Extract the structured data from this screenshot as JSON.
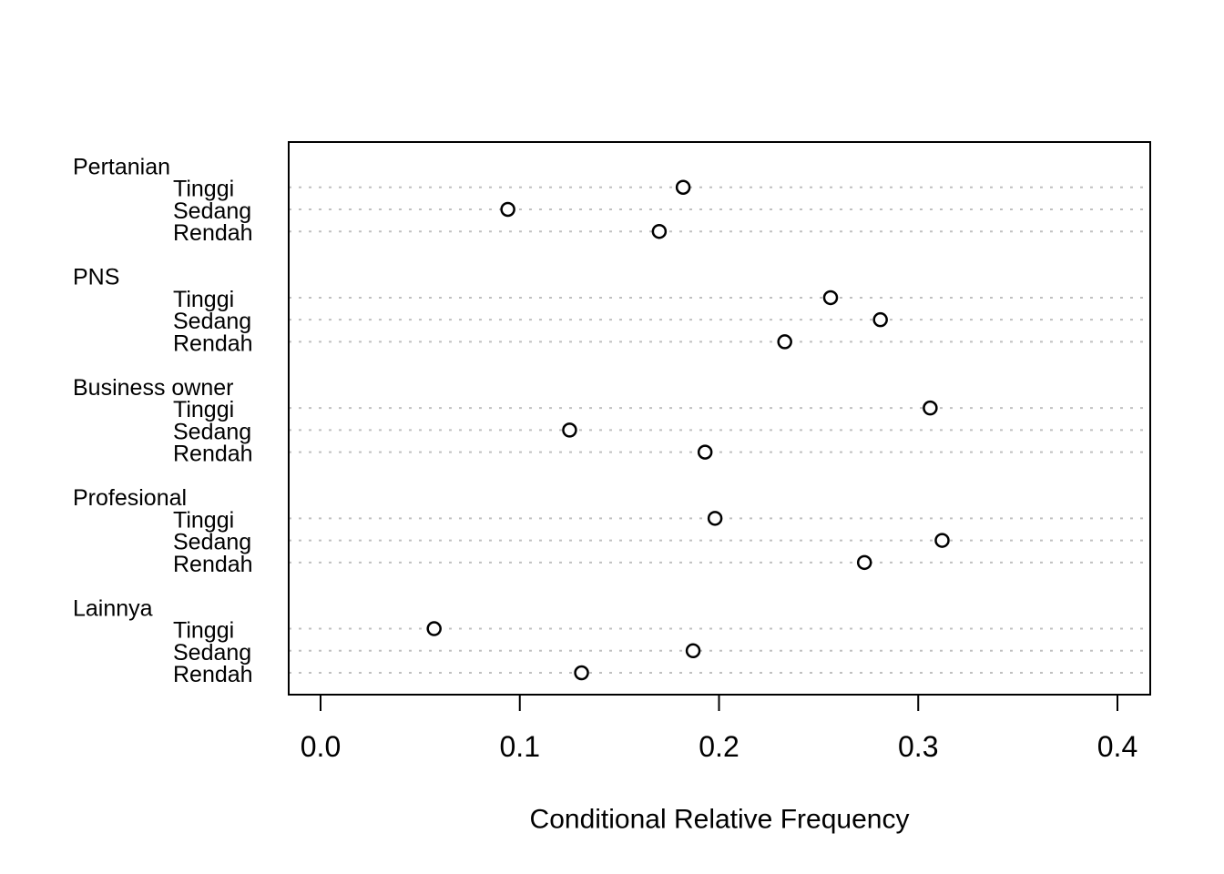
{
  "chart_data": {
    "type": "scatter",
    "variant": "dotchart",
    "title": "",
    "xlabel": "Conditional Relative Frequency",
    "ylabel": "",
    "xlim": [
      0.0,
      0.4
    ],
    "xtick_values": [
      0.0,
      0.1,
      0.2,
      0.3,
      0.4
    ],
    "xtick_labels": [
      "0.0",
      "0.1",
      "0.2",
      "0.3",
      "0.4"
    ],
    "grid": "dotted horizontal line per data row",
    "legend": "none",
    "point_style": "open circle",
    "groups": [
      {
        "label": "Pertanian",
        "items": [
          {
            "label": "Tinggi",
            "value": 0.182
          },
          {
            "label": "Sedang",
            "value": 0.094
          },
          {
            "label": "Rendah",
            "value": 0.17
          }
        ]
      },
      {
        "label": "PNS",
        "items": [
          {
            "label": "Tinggi",
            "value": 0.256
          },
          {
            "label": "Sedang",
            "value": 0.281
          },
          {
            "label": "Rendah",
            "value": 0.233
          }
        ]
      },
      {
        "label": "Business owner",
        "items": [
          {
            "label": "Tinggi",
            "value": 0.306
          },
          {
            "label": "Sedang",
            "value": 0.125
          },
          {
            "label": "Rendah",
            "value": 0.193
          }
        ]
      },
      {
        "label": "Profesional",
        "items": [
          {
            "label": "Tinggi",
            "value": 0.198
          },
          {
            "label": "Sedang",
            "value": 0.312
          },
          {
            "label": "Rendah",
            "value": 0.273
          }
        ]
      },
      {
        "label": "Lainnya",
        "items": [
          {
            "label": "Tinggi",
            "value": 0.057
          },
          {
            "label": "Sedang",
            "value": 0.187
          },
          {
            "label": "Rendah",
            "value": 0.131
          }
        ]
      }
    ],
    "colors": {
      "background": "#ffffff",
      "frame": "#000000",
      "grid": "#c0c0c0",
      "point_stroke": "#000000",
      "point_fill": "#ffffff",
      "text": "#000000"
    }
  }
}
